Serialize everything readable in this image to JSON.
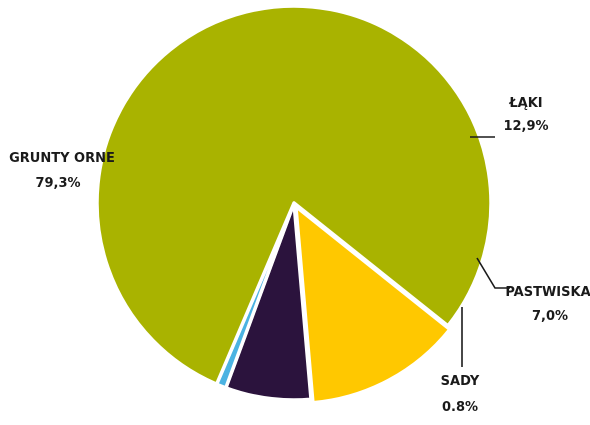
{
  "chart_data": {
    "type": "pie",
    "title": "",
    "slices": [
      {
        "name": "ŁĄKI",
        "value_label": "12,9%",
        "value": 12.9,
        "color": "#FFC800"
      },
      {
        "name": "PASTWISKA",
        "value_label": "7,0%",
        "value": 7.0,
        "color": "#2B133D"
      },
      {
        "name": "SADY",
        "value_label": "0.8%",
        "value": 0.8,
        "color": "#4BB3E2"
      },
      {
        "name": "GRUNTY ORNE",
        "value_label": "79,3%",
        "value": 79.3,
        "color": "#A9B300"
      }
    ]
  }
}
